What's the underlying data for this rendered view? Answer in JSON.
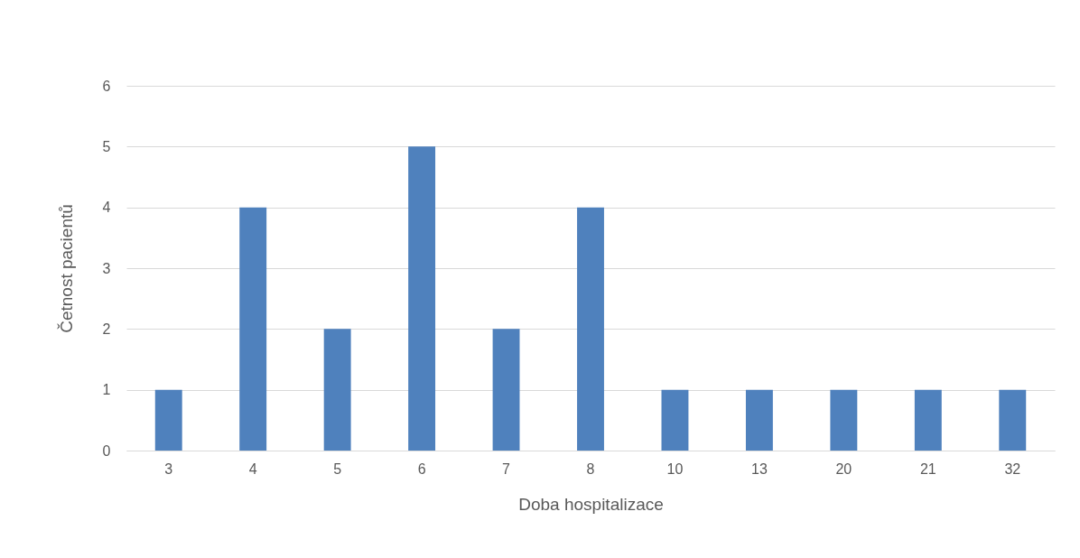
{
  "chart_data": {
    "type": "bar",
    "xlabel": "Doba hospitalizace",
    "ylabel": "Četnost pacientů",
    "categories": [
      "3",
      "4",
      "5",
      "6",
      "7",
      "8",
      "10",
      "13",
      "20",
      "21",
      "32"
    ],
    "values": [
      1,
      4,
      2,
      5,
      2,
      4,
      1,
      1,
      1,
      1,
      1
    ],
    "color": "#4f81bd",
    "ylim": [
      0,
      6
    ],
    "yticks": [
      0,
      1,
      2,
      3,
      4,
      5,
      6
    ],
    "grid": "y"
  }
}
